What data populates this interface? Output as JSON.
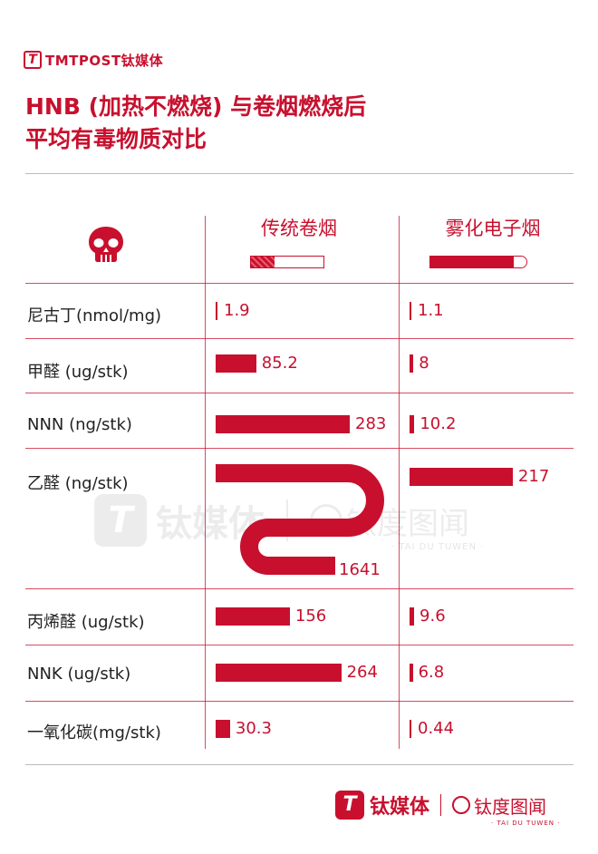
{
  "brand": {
    "name": "TMTPOST钛媒体",
    "mark": "T"
  },
  "title_line1": "HNB (加热不燃烧) 与卷烟燃烧后",
  "title_line2": "平均有毒物质对比",
  "icons": {
    "header": "skull-icon",
    "col1": "cigarette-icon",
    "col2": "e-cigarette-icon"
  },
  "colors": {
    "accent": "#c8102e",
    "divider": "#bbbbbb"
  },
  "watermark": {
    "logo": "T",
    "text1": "钛媒体",
    "text2": "钛度图闻",
    "sub": "· TAI DU TUWEN ·"
  },
  "footer": {
    "logo": "T",
    "text1": "钛媒体",
    "text2": "钛度图闻",
    "sub": "· TAI DU TUWEN ·"
  },
  "chart_data": {
    "type": "bar",
    "series": [
      {
        "name": "传统卷烟",
        "values": [
          1.9,
          85.2,
          283,
          1641,
          156,
          264,
          30.3
        ]
      },
      {
        "name": "雾化电子烟",
        "values": [
          1.1,
          8,
          10.2,
          217,
          9.6,
          6.8,
          0.44
        ]
      }
    ],
    "categories": [
      "尼古丁(nmol/mg)",
      "甲醛 (ug/stk)",
      "NNN (ng/stk)",
      "乙醛 (ng/stk)",
      "丙烯醛 (ug/stk)",
      "NNK (ug/stk)",
      "一氧化碳(mg/stk)"
    ],
    "value_labels": [
      [
        "1.9",
        "85.2",
        "283",
        "1641",
        "156",
        "264",
        "30.3"
      ],
      [
        "1.1",
        "8",
        "10.2",
        "217",
        "9.6",
        "6.8",
        "0.44"
      ]
    ],
    "orientation": "horizontal",
    "grid": false,
    "legend": "column-headers"
  }
}
